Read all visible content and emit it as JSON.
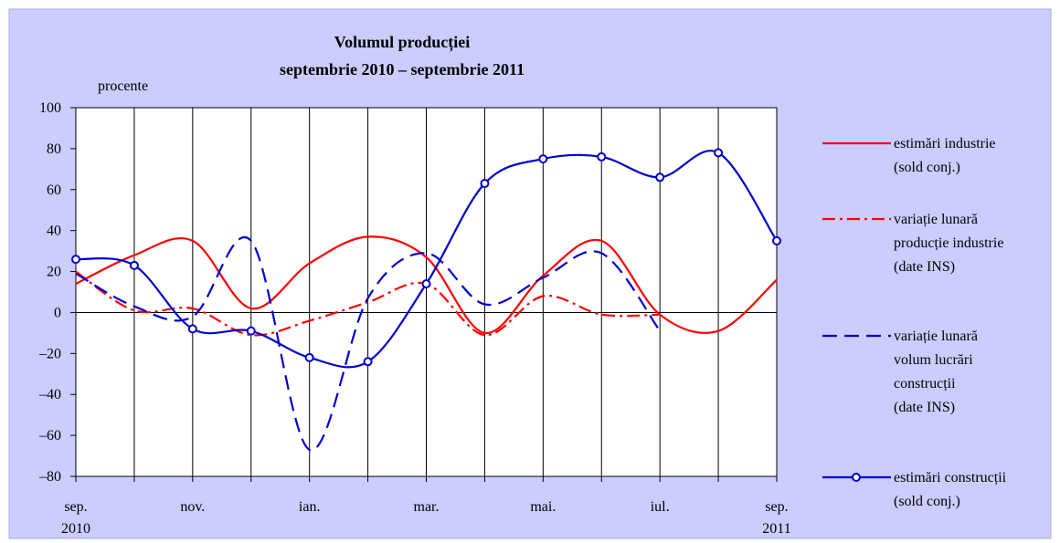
{
  "chart_data": {
    "type": "line",
    "title": "Volumul producției",
    "subtitle": "septembrie 2010 – septembrie 2011",
    "y_label": "procente",
    "categories": [
      "sep. 2010",
      null,
      "nov.",
      null,
      "ian.",
      null,
      "mar.",
      null,
      "mai.",
      null,
      "iul.",
      null,
      "sep. 2011"
    ],
    "ylim": [
      -80,
      100
    ],
    "yticks": [
      100,
      80,
      60,
      40,
      20,
      0,
      {
        "value": -20,
        "label": "–20"
      },
      {
        "value": -40,
        "label": "–40"
      },
      {
        "value": -60,
        "label": "–60"
      },
      {
        "value": -80,
        "label": "–80"
      }
    ],
    "series": [
      {
        "name": "estimări industrie\n(sold conj.)",
        "color": "#ff0000",
        "style": "solid",
        "values": [
          14,
          28,
          35,
          2,
          24,
          37,
          27,
          -10,
          18,
          35,
          -1,
          -9,
          16
        ]
      },
      {
        "name": "variație lunară\nproducție industrie\n(date INS)",
        "color": "#ff0000",
        "style": "dashdot",
        "values": [
          20,
          1,
          2,
          -11,
          -4,
          5,
          14,
          -11,
          8,
          -1,
          -1,
          null,
          null
        ]
      },
      {
        "name": "variație lunară\nvolum lucrări\nconstrucții\n(date INS)",
        "color": "#0000cc",
        "style": "dashed",
        "values": [
          19,
          3,
          -2,
          35,
          -67,
          7,
          29,
          4,
          17,
          29,
          -9,
          null,
          null
        ]
      },
      {
        "name": "estimări construcții\n(sold conj.)",
        "color": "#0000cc",
        "style": "marker",
        "values": [
          26,
          23,
          -8,
          -9,
          -22,
          -24,
          14,
          63,
          75,
          76,
          66,
          78,
          35
        ]
      }
    ]
  }
}
